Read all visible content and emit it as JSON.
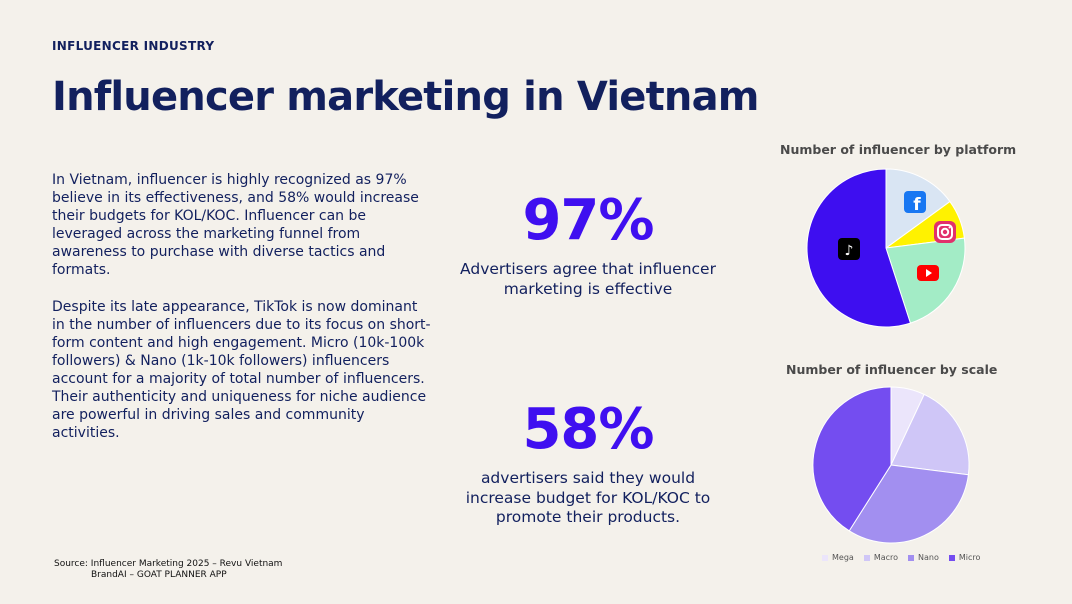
{
  "eyebrow": "INFLUENCER INDUSTRY",
  "title": "Influencer marketing in Vietnam",
  "paragraphs": [
    "In Vietnam, influencer is highly recognized as 97% believe in its effectiveness, and 58% would increase their budgets for KOL/KOC. Influencer can be leveraged across the marketing funnel from awareness to purchase with diverse tactics and formats.",
    "Despite its late appearance, TikTok is now dominant in the number of influencers due to its focus on short-form content and high engagement. Micro (10k-100k followers) & Nano (1k-10k followers) influencers account for a majority of total number of influencers. Their authenticity and uniqueness for niche audience are powerful in driving sales and community activities."
  ],
  "stats": [
    {
      "value": "97%",
      "caption": "Advertisers agree that influencer marketing is effective"
    },
    {
      "value": "58%",
      "caption": "advertisers said they would increase budget for KOL/KOC to promote their products."
    }
  ],
  "source": {
    "line1": "Source: Influencer Marketing 2025 – Revu Vietnam",
    "line2": "BrandAI – GOAT PLANNER APP"
  },
  "chart_data": [
    {
      "type": "pie",
      "title": "Number of influencer by platform",
      "slices": [
        {
          "name": "Facebook",
          "value": 15,
          "color": "#d9e5f3",
          "icon": "facebook-icon"
        },
        {
          "name": "Instagram",
          "value": 8,
          "color": "#fff200",
          "icon": "instagram-icon"
        },
        {
          "name": "YouTube",
          "value": 22,
          "color": "#a3ecc6",
          "icon": "youtube-icon"
        },
        {
          "name": "TikTok",
          "value": 55,
          "color": "#3e0ef0",
          "icon": "tiktok-icon"
        }
      ]
    },
    {
      "type": "pie",
      "title": "Number of influencer by scale",
      "slices": [
        {
          "name": "Mega",
          "value": 7,
          "color": "#ebe5fb"
        },
        {
          "name": "Macro",
          "value": 20,
          "color": "#cfc6f7"
        },
        {
          "name": "Nano",
          "value": 32,
          "color": "#a28ff0"
        },
        {
          "name": "Micro",
          "value": 41,
          "color": "#744df0"
        }
      ],
      "legend": [
        "Mega",
        "Macro",
        "Nano",
        "Micro"
      ]
    }
  ]
}
